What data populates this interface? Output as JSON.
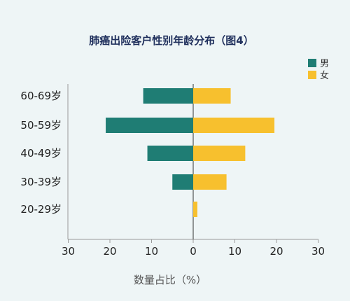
{
  "chart_data": {
    "type": "bar",
    "orientation": "horizontal",
    "title": "肺癌出险客户性别年龄分布（图4）",
    "xlabel": "数量占比（%）",
    "ylabel": "",
    "categories": [
      "60-69岁",
      "50-59岁",
      "40-49岁",
      "30-39岁",
      "20-29岁"
    ],
    "series": [
      {
        "name": "男",
        "color": "#1f7d74",
        "direction": "left",
        "values": [
          12,
          21,
          11,
          5,
          0
        ]
      },
      {
        "name": "女",
        "color": "#f7c02e",
        "direction": "right",
        "values": [
          9,
          19.5,
          12.5,
          8,
          1
        ]
      }
    ],
    "x_ticks": [
      "30",
      "20",
      "10",
      "0",
      "10",
      "20",
      "30"
    ],
    "xlim": [
      -30,
      30
    ],
    "legend_position": "top-right",
    "grid": false
  }
}
